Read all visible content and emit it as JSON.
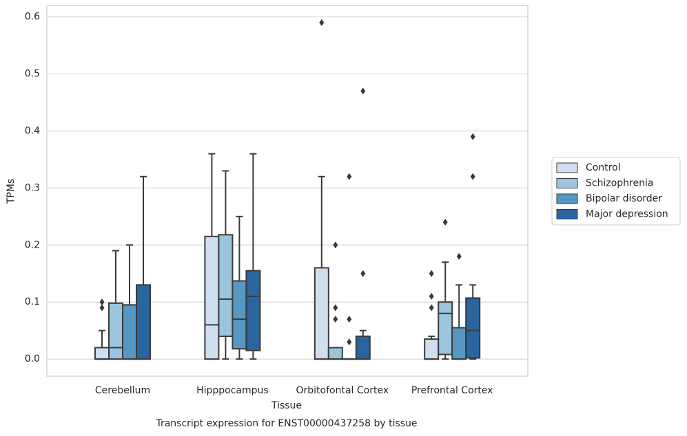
{
  "chart_data": {
    "type": "box",
    "title": "Transcript expression for ENST00000437258 by tissue",
    "x_label": "Tissue",
    "y_label": "TPMs",
    "categories": [
      "Cerebellum",
      "Hipppocampus",
      "Orbitofontal Cortex",
      "Prefrontal Cortex"
    ],
    "ylim": [
      -0.03,
      0.62
    ],
    "yticks": [
      {
        "value": 0,
        "label": "0.0"
      },
      0.1,
      0.2,
      0.3,
      0.4,
      0.5,
      0.6
    ],
    "grid": true,
    "legend": "outside-right",
    "series": [
      {
        "name": "Control",
        "color": "#cfdfef",
        "boxes": [
          {
            "whislo": 0,
            "q1": 0,
            "med": 0,
            "q3": 0.02,
            "whishi": 0.05,
            "fliers": [
              0.09,
              0.1
            ]
          },
          {
            "whislo": 0,
            "q1": 0,
            "med": 0.06,
            "q3": 0.215,
            "whishi": 0.36,
            "fliers": []
          },
          {
            "whislo": 0,
            "q1": 0,
            "med": 0,
            "q3": 0.16,
            "whishi": 0.32,
            "fliers": [
              0.59
            ]
          },
          {
            "whislo": 0,
            "q1": 0,
            "med": 0,
            "q3": 0.035,
            "whishi": 0.04,
            "fliers": [
              0.09,
              0.11,
              0.15
            ]
          }
        ]
      },
      {
        "name": "Schizophrenia",
        "color": "#9ac5dc",
        "boxes": [
          {
            "whislo": 0,
            "q1": 0,
            "med": 0.02,
            "q3": 0.098,
            "whishi": 0.19,
            "fliers": []
          },
          {
            "whislo": 0,
            "q1": 0.04,
            "med": 0.105,
            "q3": 0.218,
            "whishi": 0.33,
            "fliers": []
          },
          {
            "whislo": 0,
            "q1": 0,
            "med": 0,
            "q3": 0.02,
            "whishi": 0.02,
            "fliers": [
              0.07,
              0.09,
              0.2
            ]
          },
          {
            "whislo": 0,
            "q1": 0.008,
            "med": 0.08,
            "q3": 0.1,
            "whishi": 0.17,
            "fliers": [
              0.24
            ]
          }
        ]
      },
      {
        "name": "Bipolar disorder",
        "color": "#5598c4",
        "boxes": [
          {
            "whislo": 0,
            "q1": 0,
            "med": 0,
            "q3": 0.095,
            "whishi": 0.2,
            "fliers": []
          },
          {
            "whislo": 0,
            "q1": 0.018,
            "med": 0.07,
            "q3": 0.137,
            "whishi": 0.25,
            "fliers": []
          },
          {
            "whislo": 0,
            "q1": 0,
            "med": 0,
            "q3": 0,
            "whishi": 0,
            "fliers": [
              0.03,
              0.07,
              0.32
            ]
          },
          {
            "whislo": 0,
            "q1": 0,
            "med": 0,
            "q3": 0.055,
            "whishi": 0.13,
            "fliers": [
              0.18
            ]
          }
        ]
      },
      {
        "name": "Major depression",
        "color": "#2a65a0",
        "boxes": [
          {
            "whislo": 0,
            "q1": 0,
            "med": 0,
            "q3": 0.13,
            "whishi": 0.32,
            "fliers": []
          },
          {
            "whislo": 0,
            "q1": 0.015,
            "med": 0.11,
            "q3": 0.155,
            "whishi": 0.36,
            "fliers": []
          },
          {
            "whislo": 0,
            "q1": 0,
            "med": 0,
            "q3": 0.04,
            "whishi": 0.05,
            "fliers": [
              0.15,
              0.47
            ]
          },
          {
            "whislo": 0,
            "q1": 0.002,
            "med": 0.05,
            "q3": 0.107,
            "whishi": 0.13,
            "fliers": [
              0.32,
              0.39
            ]
          }
        ]
      }
    ]
  }
}
